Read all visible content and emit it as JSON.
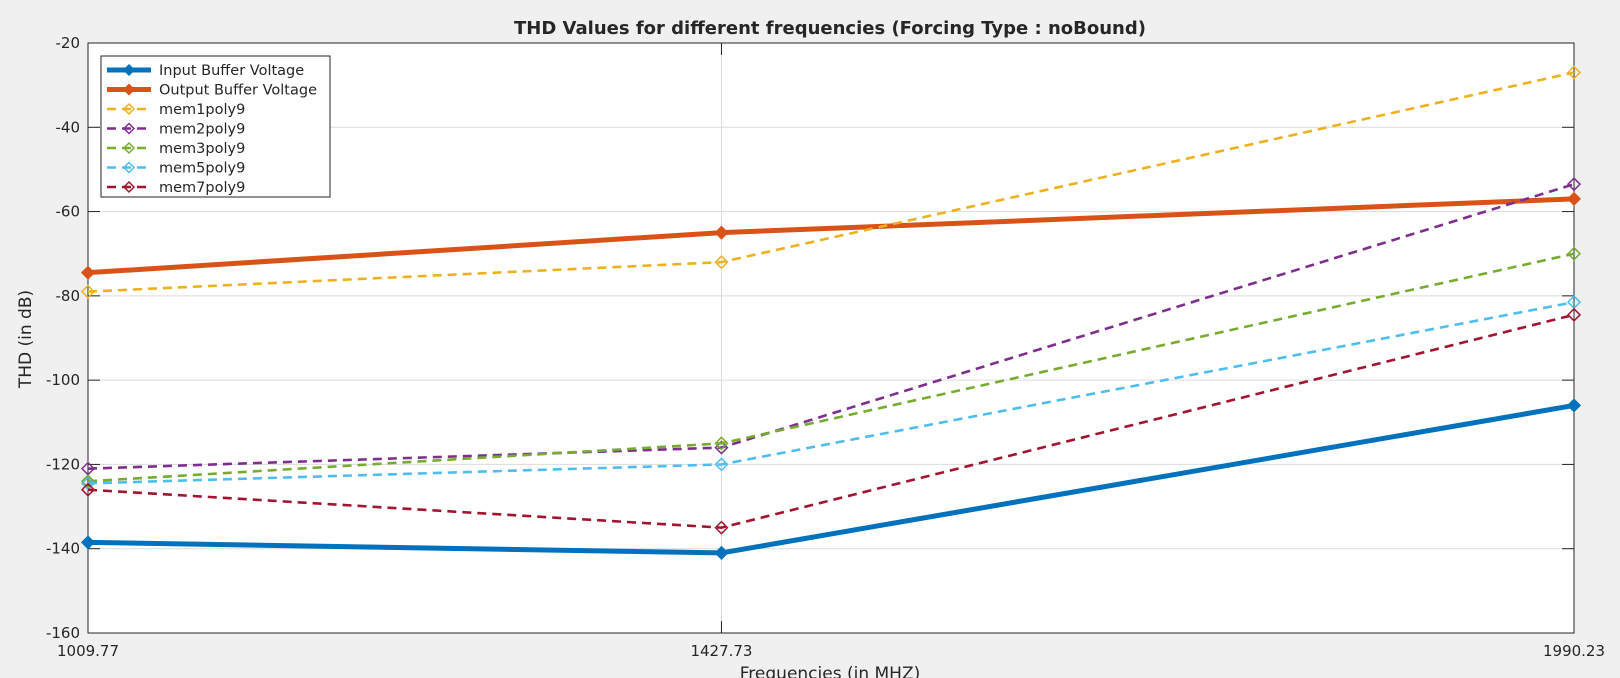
{
  "chart_data": {
    "type": "line",
    "title": "THD Values for different frequencies (Forcing Type : noBound)",
    "xlabel": "Frequencies (in MHZ)",
    "ylabel": "THD (in dB)",
    "x": [
      "1009.77",
      "1427.73",
      "1990.23"
    ],
    "x_values": [
      1009.77,
      1427.73,
      1990.23
    ],
    "xlim": [
      1009.77,
      1990.23
    ],
    "ylim": [
      -160,
      -20
    ],
    "yticks": [
      -20,
      -40,
      -60,
      -80,
      -100,
      -120,
      -140,
      -160
    ],
    "grid": true,
    "legend_position": "top-left",
    "series": [
      {
        "name": "Input Buffer Voltage",
        "values": [
          -138.5,
          -141,
          -106
        ],
        "color": "#0072BD",
        "style": "solid",
        "marker": "diamond"
      },
      {
        "name": "Output Buffer Voltage",
        "values": [
          -74.5,
          -65,
          -57
        ],
        "color": "#D95319",
        "style": "solid",
        "marker": "diamond"
      },
      {
        "name": "mem1poly9",
        "values": [
          -79,
          -72,
          -27
        ],
        "color": "#EDB120",
        "style": "dashed",
        "marker": "diamond"
      },
      {
        "name": "mem2poly9",
        "values": [
          -121,
          -116,
          -53.5
        ],
        "color": "#7E2F8E",
        "style": "dashed",
        "marker": "diamond"
      },
      {
        "name": "mem3poly9",
        "values": [
          -124,
          -115,
          -70
        ],
        "color": "#77AC30",
        "style": "dashed",
        "marker": "diamond"
      },
      {
        "name": "mem5poly9",
        "values": [
          -124.5,
          -120,
          -81.5
        ],
        "color": "#4DBEEE",
        "style": "dashed",
        "marker": "diamond"
      },
      {
        "name": "mem7poly9",
        "values": [
          -126,
          -135,
          -84.5
        ],
        "color": "#A2142F",
        "style": "dashed",
        "marker": "diamond"
      }
    ]
  }
}
